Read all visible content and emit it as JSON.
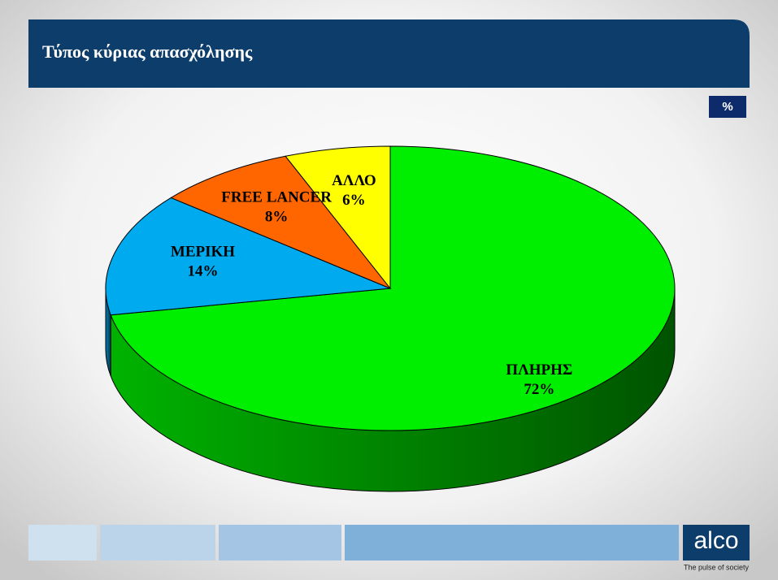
{
  "chart_data": {
    "type": "pie",
    "title": "Τύπος κύριας απασχόλησης",
    "unit_label": "%",
    "categories": [
      "ΠΛΗΡΗΣ",
      "ΜΕΡΙΚΗ",
      "FREE LANCER",
      "ΑΛΛΟ"
    ],
    "values": [
      72,
      14,
      8,
      6
    ],
    "value_labels": [
      "72%",
      "14%",
      "8%",
      "6%"
    ],
    "colors": [
      "#00ee00",
      "#00aaee",
      "#ff6600",
      "#ffff00"
    ]
  },
  "footer": {
    "brand": "alco",
    "tagline": "The pulse of society"
  }
}
